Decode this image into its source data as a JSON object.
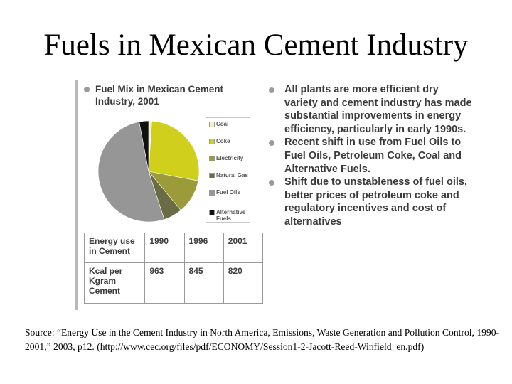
{
  "slide": {
    "title": "Fuels in Mexican Cement Industry",
    "source": "Source: “Energy Use in the Cement Industry in North America, Emissions, Waste Generation and Pollution Control, 1990-2001,” 2003, p12. (http://www.cec.org/files/pdf/ECONOMY/Session1-2-Jacott-Reed-Winfield_en.pdf)"
  },
  "left": {
    "heading": "Fuel Mix in Mexican Cement Industry, 2001"
  },
  "chart_data": [
    {
      "type": "pie",
      "title": "Fuel Mix in Mexican Cement Industry, 2001",
      "legend_position": "right",
      "categories": [
        "Coal",
        "Coke",
        "Electricity",
        "Natural Gas",
        "Fuel Oils",
        "Alternative Fuels"
      ],
      "values": [
        1,
        27,
        11,
        6,
        52,
        3
      ],
      "colors": [
        "#f4f1c9",
        "#cfcf1c",
        "#9c9b3a",
        "#6a6c46",
        "#969696",
        "#111111"
      ]
    },
    {
      "type": "table",
      "rows": [
        [
          "Energy use in Cement",
          "1990",
          "1996",
          "2001"
        ],
        [
          "Kcal per Kgram Cement",
          "963",
          "845",
          "820"
        ]
      ]
    }
  ],
  "right": {
    "bullets": [
      "All plants are more efficient dry variety and cement industry has made substantial improvements in energy efficiency, particularly in early 1990s.",
      "Recent shift in use from Fuel Oils to Fuel Oils, Petroleum Coke, Coal and Alternative Fuels.",
      "Shift due to unstableness of fuel oils, better prices of petroleum coke and regulatory incentives and cost of alternatives"
    ]
  }
}
